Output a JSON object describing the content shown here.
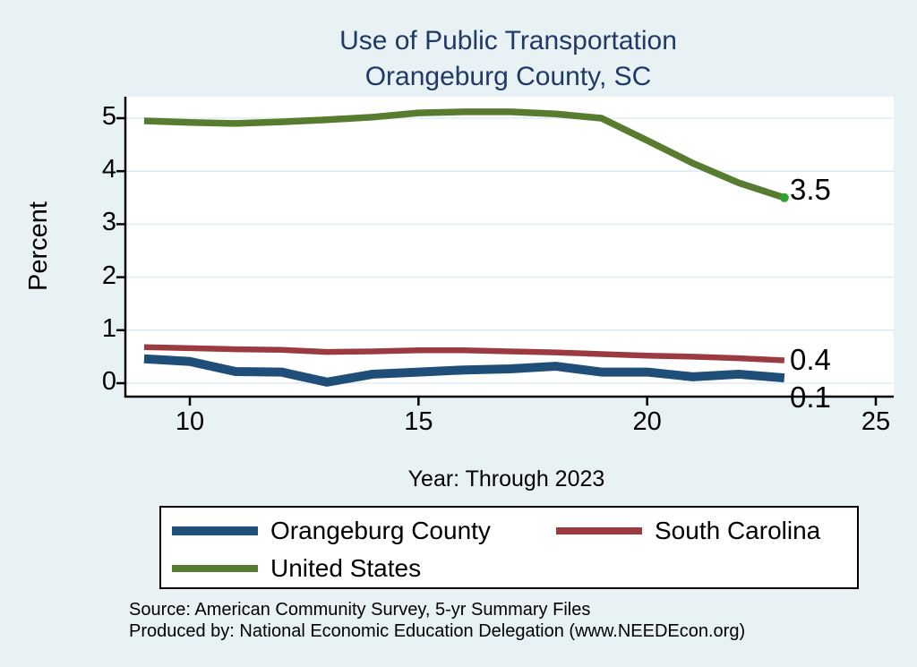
{
  "title": {
    "line1": "Use of Public Transportation",
    "line2": "Orangeburg County, SC"
  },
  "chart_data": {
    "type": "line",
    "title": "Use of Public Transportation Orangeburg County, SC",
    "xlabel": "Year: Through 2023",
    "ylabel": "Percent",
    "x": [
      9,
      10,
      11,
      12,
      13,
      14,
      15,
      16,
      17,
      18,
      19,
      20,
      21,
      22,
      23
    ],
    "xticks": [
      10,
      15,
      20,
      25
    ],
    "yticks": [
      0,
      1,
      2,
      3,
      4,
      5
    ],
    "xlim": [
      8.6,
      25.4
    ],
    "ylim": [
      -0.25,
      5.4
    ],
    "grid": "horizontal",
    "legend_position": "bottom",
    "series": [
      {
        "name": "Orangeburg County",
        "color": "#1f4e79",
        "line_width": 10,
        "values": [
          0.46,
          0.41,
          0.22,
          0.21,
          0.02,
          0.17,
          0.21,
          0.25,
          0.27,
          0.32,
          0.21,
          0.21,
          0.12,
          0.17,
          0.1
        ],
        "end_label": "0.1",
        "end_marker": false
      },
      {
        "name": "South Carolina",
        "color": "#9b3b41",
        "line_width": 6.5,
        "values": [
          0.68,
          0.66,
          0.64,
          0.63,
          0.59,
          0.6,
          0.62,
          0.62,
          0.6,
          0.58,
          0.55,
          0.52,
          0.5,
          0.47,
          0.43
        ],
        "end_label": "0.4",
        "end_marker": false
      },
      {
        "name": "United States",
        "color": "#577c30",
        "line_width": 7.5,
        "values": [
          4.95,
          4.92,
          4.9,
          4.93,
          4.97,
          5.02,
          5.1,
          5.12,
          5.12,
          5.08,
          5.0,
          4.58,
          4.15,
          3.78,
          3.5
        ],
        "end_label": "3.5",
        "end_marker": true,
        "marker_color": "#2fa12f"
      }
    ]
  },
  "colors": {
    "background": "#e8f1f4",
    "plot_background": "#ffffff",
    "gridline": "#dfebf2",
    "axis": "#000000",
    "title_text": "#1f3a67",
    "legend_border": "#000000",
    "legend_background": "#ffffff"
  },
  "notes": {
    "source": "Source: American Community Survey, 5-yr Summary Files",
    "produced_by": "Produced by: National Economic Education Delegation (www.NEEDEcon.org)"
  }
}
